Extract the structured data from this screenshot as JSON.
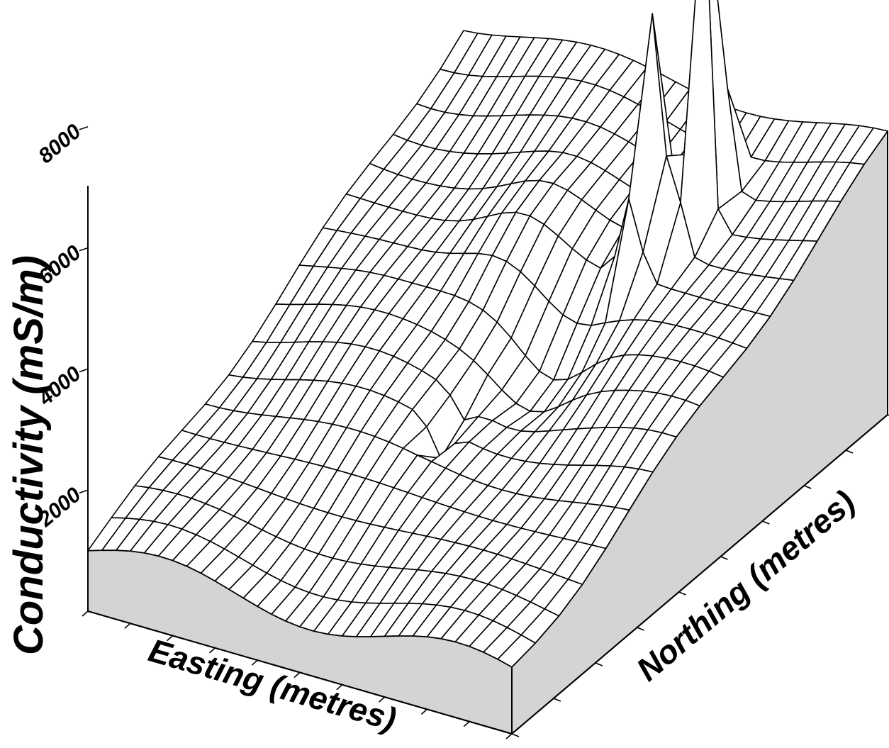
{
  "chart_data": {
    "type": "surface",
    "title": "",
    "zlabel": "Conductivity (mS/m)",
    "xlabel": "Easting (metres)",
    "ylabel": "Northing (metres)",
    "zticks": [
      2000,
      4000,
      6000,
      8000
    ],
    "zlim": [
      0,
      10000
    ],
    "grid": {
      "columns": 31,
      "rows": 17
    },
    "surface_features": [
      {
        "feature": "broad conductivity ramp",
        "profile": "rises from about 1000 mS/m along the front (easting) edge to about 4500 mS/m along the back edge"
      },
      {
        "feature": "main peak",
        "easting_fraction": 0.73,
        "northing_fraction": 0.82,
        "conductivity": 10000
      },
      {
        "feature": "shoulder peak beside main peak",
        "easting_fraction": 0.67,
        "northing_fraction": 0.74,
        "conductivity": 8000
      },
      {
        "feature": "secondary peak",
        "easting_fraction": 0.5,
        "northing_fraction": 0.4,
        "conductivity": 3200
      }
    ]
  }
}
